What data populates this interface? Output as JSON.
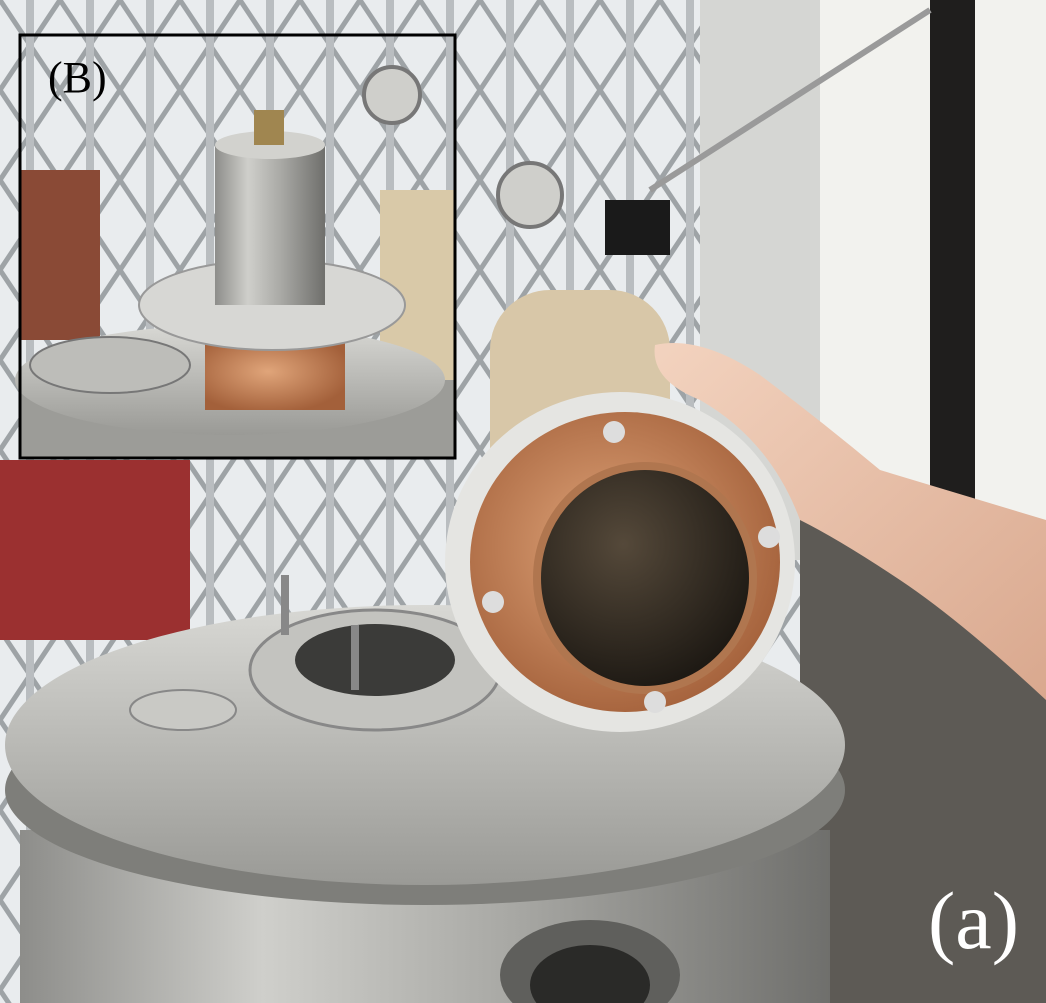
{
  "labels": {
    "inset": "(B)",
    "main": "(a)"
  }
}
